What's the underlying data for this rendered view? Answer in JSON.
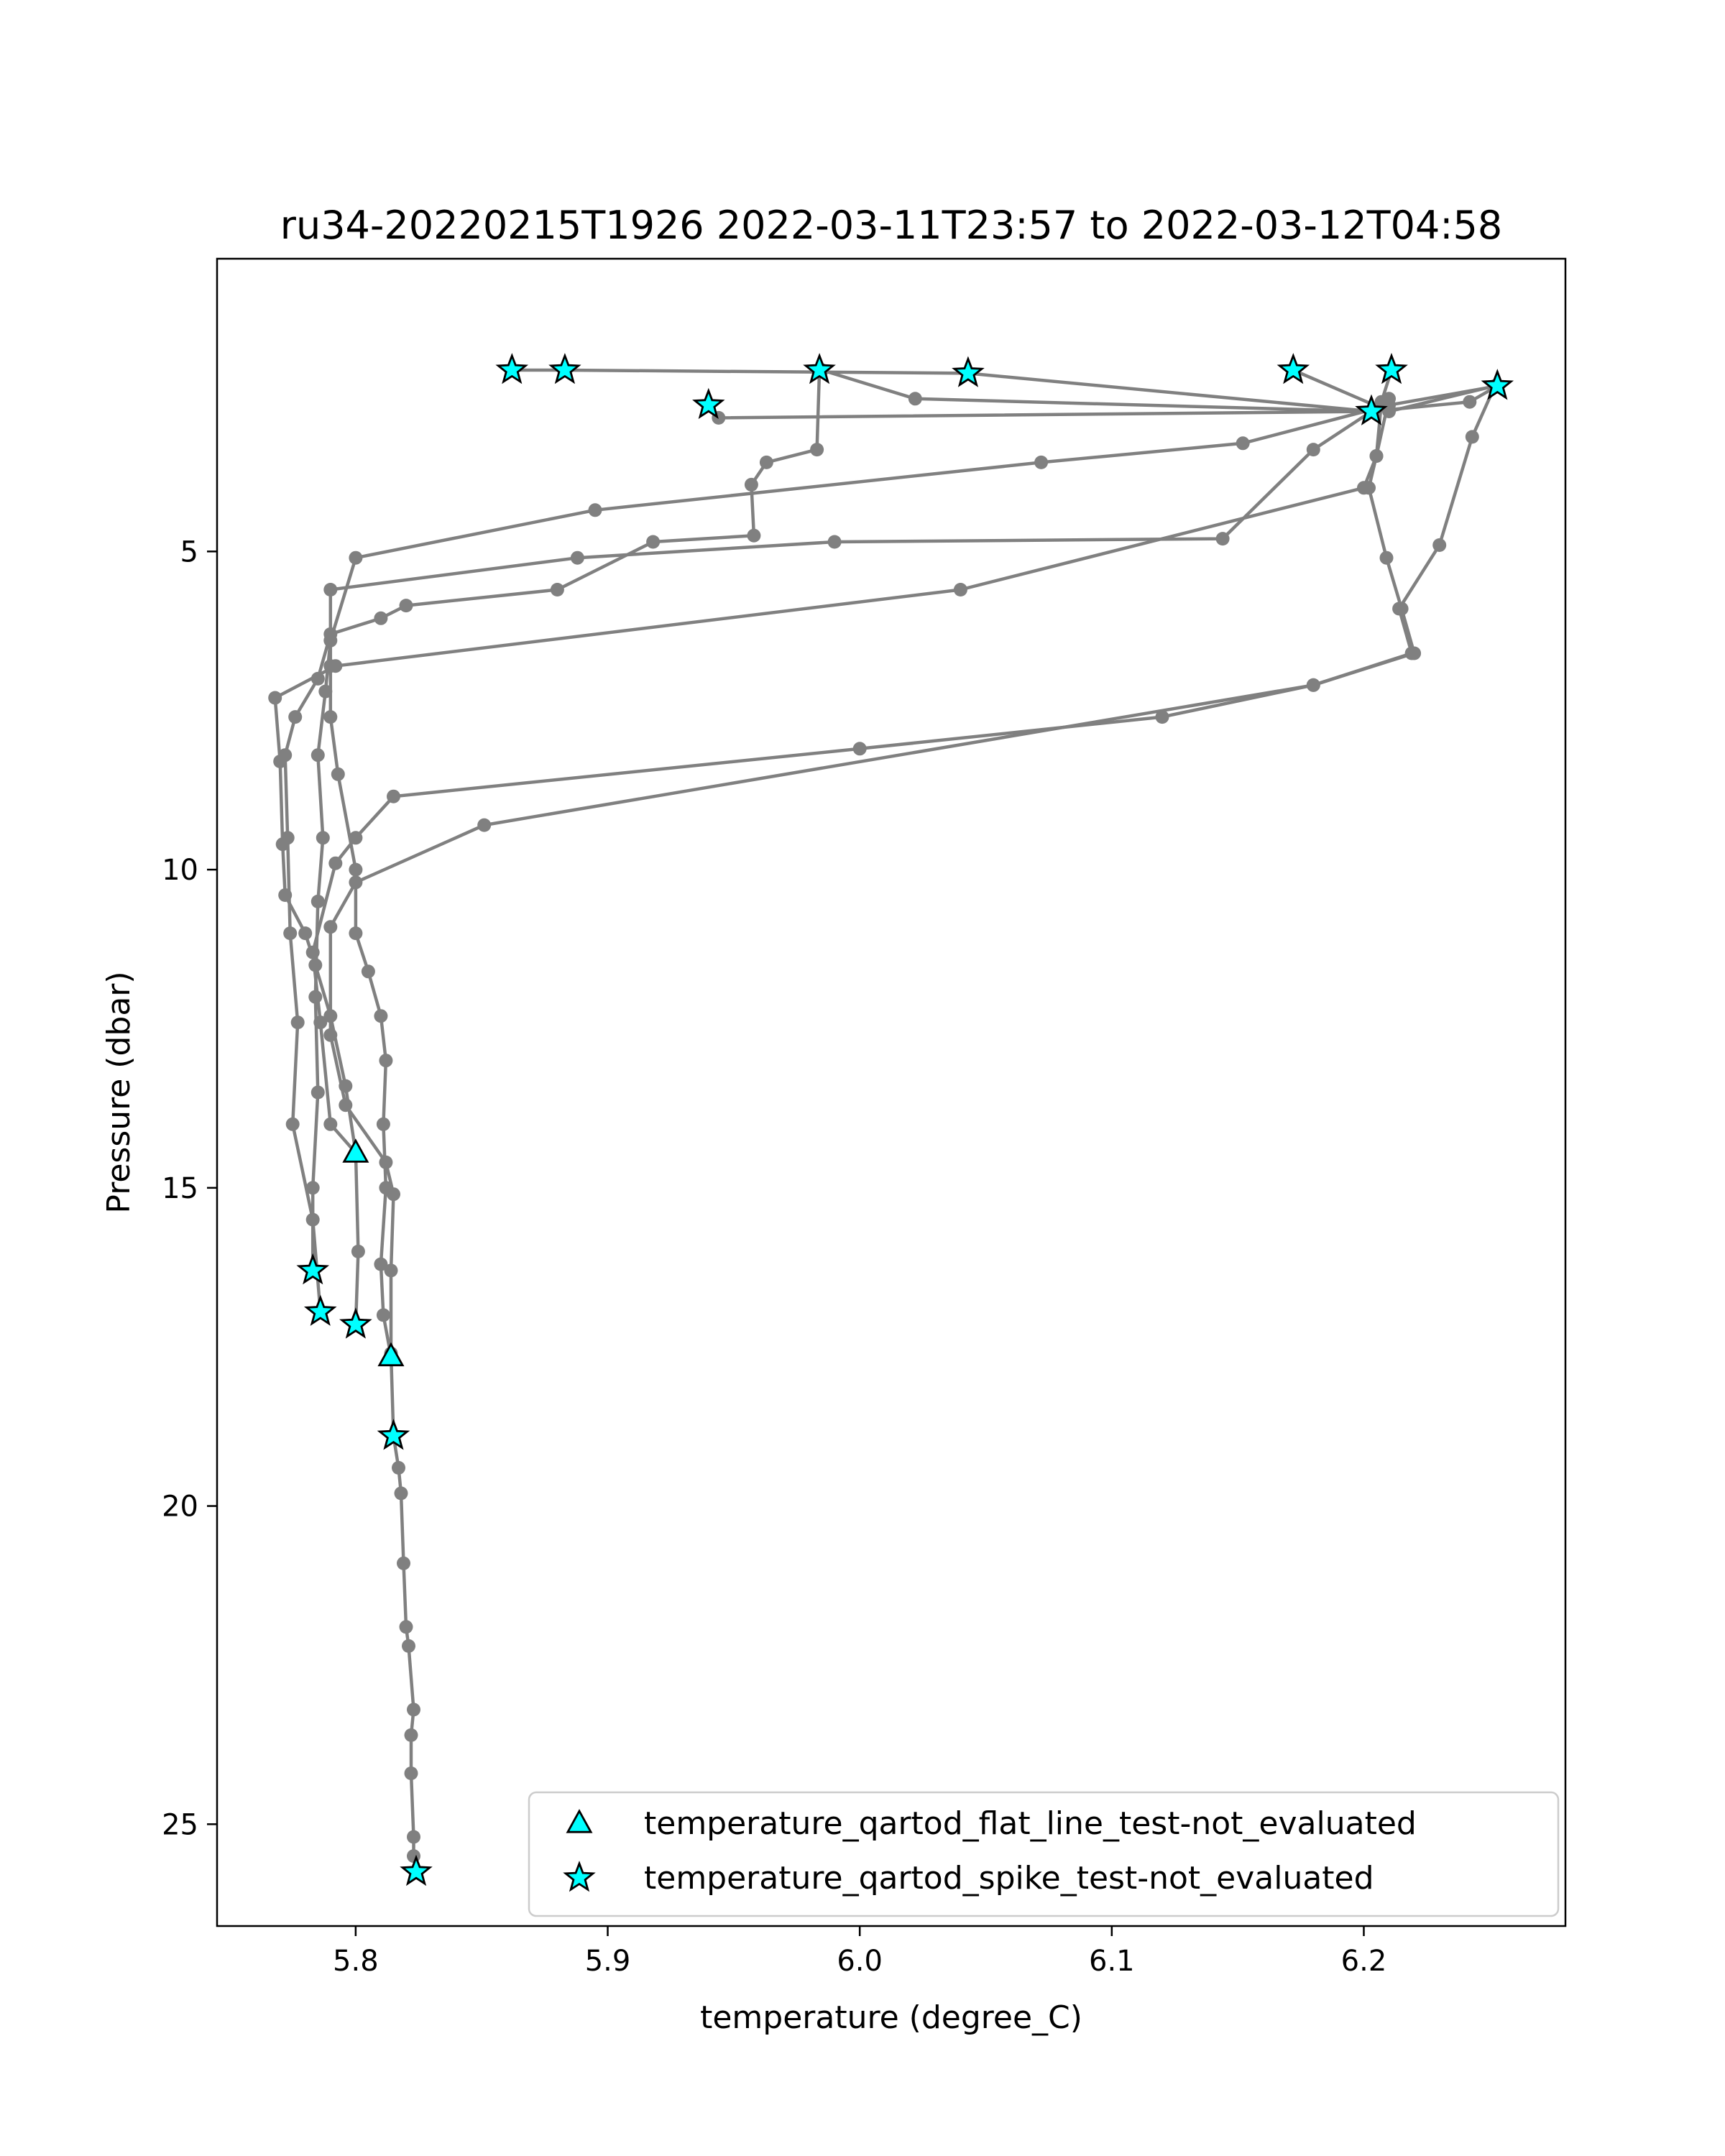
{
  "chart_data": {
    "type": "line",
    "title": "ru34-20220215T1926 2022-03-11T23:57 to 2022-03-12T04:58",
    "xlabel": "temperature (degree_C)",
    "ylabel": "Pressure (dbar)",
    "xlim": [
      5.745,
      6.28
    ],
    "ylim": [
      26.6,
      0.4
    ],
    "y_inverted": true,
    "x_ticks": [
      5.8,
      5.9,
      6.0,
      6.1,
      6.2
    ],
    "x_tick_labels": [
      "5.8",
      "5.9",
      "6.0",
      "6.1",
      "6.2"
    ],
    "y_ticks": [
      5,
      10,
      15,
      20,
      25
    ],
    "y_tick_labels": [
      "5",
      "10",
      "15",
      "20",
      "25"
    ],
    "grid": false,
    "legend_position": "lower-right",
    "colors": {
      "line": "#808080",
      "marker_fill": "#00ffff",
      "marker_edge": "#000000"
    },
    "series": [
      {
        "values": [
          [
            5.786,
            16.95
          ],
          [
            5.783,
            15.5
          ],
          [
            5.775,
            14.0
          ],
          [
            5.777,
            12.4
          ],
          [
            5.774,
            11.0
          ],
          [
            5.773,
            9.5
          ],
          [
            5.772,
            8.2
          ],
          [
            5.776,
            7.6
          ],
          [
            5.785,
            7.0
          ],
          [
            5.79,
            6.3
          ],
          [
            5.81,
            6.05
          ],
          [
            5.82,
            5.85
          ],
          [
            5.88,
            5.6
          ],
          [
            5.918,
            4.85
          ],
          [
            5.958,
            4.75
          ],
          [
            5.957,
            3.95
          ],
          [
            5.963,
            3.6
          ],
          [
            5.983,
            3.4
          ],
          [
            5.984,
            2.15
          ]
        ]
      },
      {
        "values": [
          [
            5.985,
            2.15
          ],
          [
            6.022,
            2.6
          ],
          [
            6.203,
            2.8
          ],
          [
            6.242,
            2.65
          ],
          [
            6.253,
            2.4
          ],
          [
            6.21,
            2.7
          ],
          [
            6.152,
            3.3
          ],
          [
            6.072,
            3.6
          ],
          [
            5.895,
            4.35
          ],
          [
            5.8,
            5.1
          ],
          [
            5.79,
            6.4
          ],
          [
            5.788,
            7.2
          ],
          [
            5.785,
            8.2
          ],
          [
            5.787,
            9.5
          ],
          [
            5.785,
            10.5
          ],
          [
            5.784,
            12.0
          ],
          [
            5.785,
            13.5
          ],
          [
            5.783,
            15.0
          ],
          [
            5.783,
            16.3
          ]
        ]
      },
      {
        "values": [
          [
            5.8,
            17.15
          ],
          [
            5.801,
            16.0
          ],
          [
            5.8,
            14.45
          ],
          [
            5.796,
            13.4
          ],
          [
            5.79,
            12.3
          ],
          [
            5.784,
            11.5
          ],
          [
            5.78,
            11.0
          ],
          [
            5.772,
            10.4
          ],
          [
            5.771,
            9.6
          ],
          [
            5.77,
            8.3
          ],
          [
            5.768,
            7.3
          ],
          [
            5.792,
            6.8
          ],
          [
            6.04,
            5.6
          ],
          [
            6.2,
            4.0
          ],
          [
            6.205,
            3.5
          ],
          [
            6.207,
            2.65
          ],
          [
            6.211,
            2.15
          ]
        ]
      },
      {
        "values": [
          [
            6.172,
            2.15
          ],
          [
            6.21,
            2.8
          ],
          [
            6.252,
            2.4
          ],
          [
            6.243,
            3.2
          ],
          [
            6.23,
            4.9
          ],
          [
            6.214,
            5.9
          ],
          [
            6.219,
            6.6
          ],
          [
            6.18,
            7.1
          ],
          [
            6.12,
            7.6
          ],
          [
            6.0,
            8.1
          ],
          [
            5.815,
            8.85
          ],
          [
            5.8,
            9.5
          ],
          [
            5.792,
            9.9
          ],
          [
            5.783,
            11.3
          ],
          [
            5.786,
            12.4
          ],
          [
            5.79,
            14.0
          ],
          [
            5.8,
            14.45
          ]
        ]
      },
      {
        "values": [
          [
            5.94,
            2.7
          ],
          [
            5.944,
            2.9
          ],
          [
            6.203,
            2.8
          ],
          [
            6.18,
            3.4
          ],
          [
            6.144,
            4.8
          ],
          [
            5.99,
            4.85
          ],
          [
            5.888,
            5.1
          ],
          [
            5.79,
            5.6
          ],
          [
            5.79,
            6.8
          ],
          [
            5.79,
            7.6
          ],
          [
            5.793,
            8.5
          ],
          [
            5.8,
            10.0
          ],
          [
            5.8,
            11.0
          ],
          [
            5.805,
            11.6
          ],
          [
            5.81,
            12.3
          ],
          [
            5.812,
            13.0
          ],
          [
            5.811,
            14.0
          ],
          [
            5.812,
            15.0
          ],
          [
            5.81,
            16.2
          ],
          [
            5.811,
            17.0
          ],
          [
            5.814,
            17.65
          ]
        ]
      },
      {
        "values": [
          [
            5.862,
            2.15
          ],
          [
            5.883,
            2.15
          ],
          [
            6.043,
            2.2
          ],
          [
            6.203,
            2.8
          ],
          [
            6.21,
            2.6
          ],
          [
            6.205,
            3.5
          ],
          [
            6.202,
            4.0
          ],
          [
            6.209,
            5.1
          ],
          [
            6.215,
            5.9
          ],
          [
            6.22,
            6.6
          ],
          [
            6.18,
            7.1
          ],
          [
            5.851,
            9.3
          ],
          [
            5.8,
            10.2
          ],
          [
            5.79,
            10.9
          ],
          [
            5.79,
            12.6
          ],
          [
            5.796,
            13.7
          ],
          [
            5.812,
            14.6
          ],
          [
            5.815,
            15.1
          ],
          [
            5.814,
            16.3
          ],
          [
            5.814,
            17.6
          ],
          [
            5.815,
            18.9
          ],
          [
            5.817,
            19.4
          ],
          [
            5.818,
            19.8
          ],
          [
            5.819,
            20.9
          ],
          [
            5.82,
            21.9
          ],
          [
            5.821,
            22.2
          ],
          [
            5.823,
            23.2
          ],
          [
            5.822,
            23.6
          ],
          [
            5.822,
            24.2
          ],
          [
            5.823,
            25.2
          ],
          [
            5.823,
            25.5
          ],
          [
            5.824,
            25.75
          ]
        ]
      }
    ],
    "flag_markers": [
      {
        "name": "temperature_qartod_flat_line_test-not_evaluated",
        "marker": "triangle",
        "points": [
          [
            5.8,
            14.45
          ],
          [
            5.814,
            17.65
          ]
        ]
      },
      {
        "name": "temperature_qartod_spike_test-not_evaluated",
        "marker": "star",
        "points": [
          [
            5.862,
            2.15
          ],
          [
            5.883,
            2.15
          ],
          [
            5.984,
            2.15
          ],
          [
            6.043,
            2.2
          ],
          [
            6.172,
            2.15
          ],
          [
            6.211,
            2.15
          ],
          [
            6.253,
            2.4
          ],
          [
            5.94,
            2.7
          ],
          [
            6.203,
            2.8
          ],
          [
            5.783,
            16.3
          ],
          [
            5.786,
            16.95
          ],
          [
            5.8,
            17.15
          ],
          [
            5.815,
            18.9
          ],
          [
            5.824,
            25.75
          ]
        ]
      }
    ]
  }
}
